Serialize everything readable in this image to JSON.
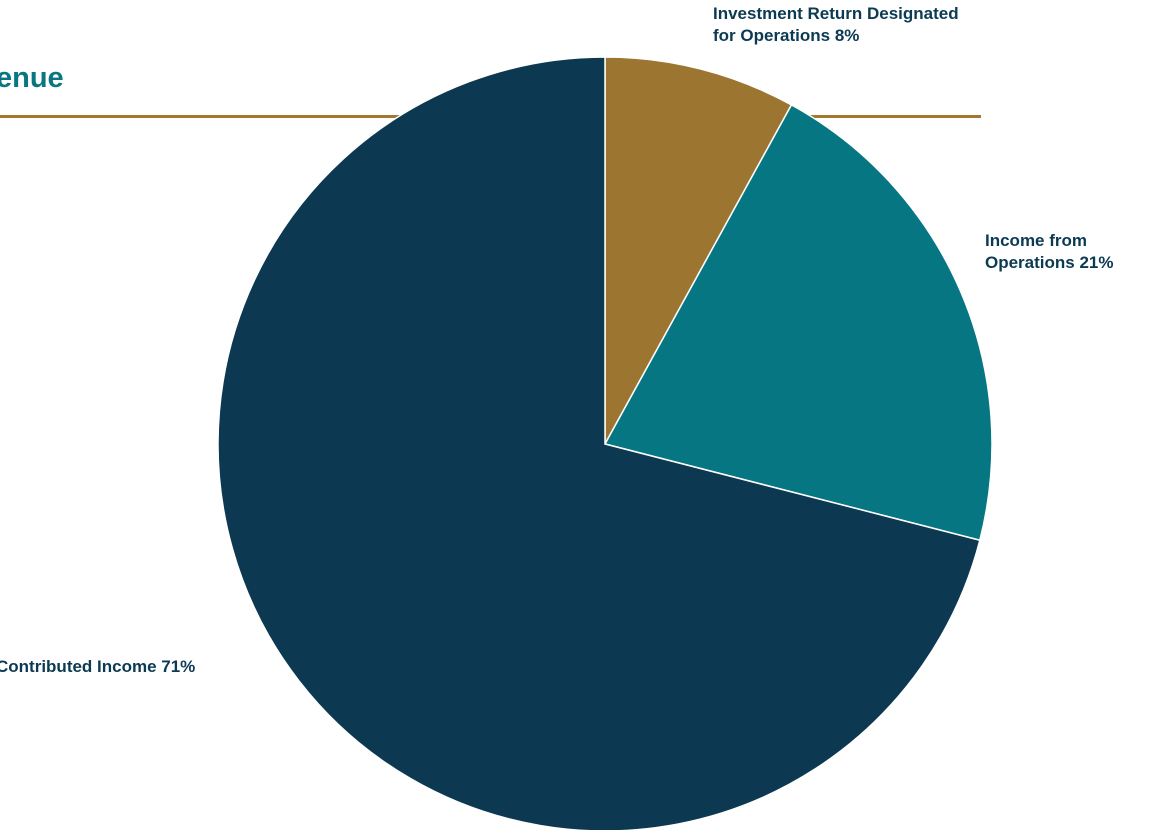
{
  "header": {
    "title": "enue"
  },
  "colors": {
    "rule": "#a2782f",
    "title": "#0a7682",
    "label": "#0b3a52"
  },
  "chart_data": {
    "type": "pie",
    "title": "enue",
    "slices": [
      {
        "label": "Investment Return Designated for Operations",
        "label_lines": [
          "Investment Return Designated",
          "for Operations 8%"
        ],
        "value": 8,
        "color": "#9c7630"
      },
      {
        "label": "Income from Operations",
        "label_lines": [
          "Income from",
          "Operations 21%"
        ],
        "value": 21,
        "color": "#077683"
      },
      {
        "label": "Contributed Income",
        "label_lines": [
          "Contributed Income 71%"
        ],
        "value": 71,
        "color": "#0c3951"
      }
    ],
    "legend": "none",
    "grid": false
  }
}
